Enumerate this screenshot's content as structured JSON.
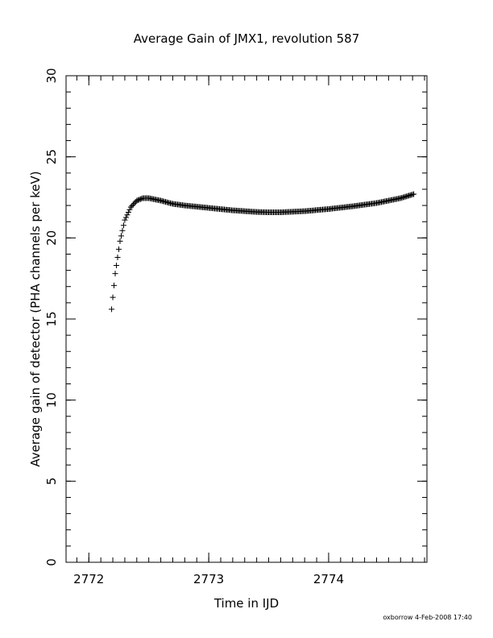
{
  "chart_data": {
    "type": "scatter",
    "title": "Average Gain of JMX1, revolution 587",
    "xlabel": "Time in IJD",
    "ylabel": "Average gain of detector (PHA channels per keV)",
    "xlim": [
      2771.81,
      2774.82
    ],
    "ylim": [
      0,
      30
    ],
    "x_major_ticks": [
      2772,
      2773,
      2774
    ],
    "x_tick_labels": [
      "2772",
      "2773",
      "2774"
    ],
    "x_minor_step": 0.1,
    "y_major_ticks": [
      0,
      5,
      10,
      15,
      20,
      25,
      30
    ],
    "y_tick_labels": [
      "0",
      "5",
      "10",
      "15",
      "20",
      "25",
      "30"
    ],
    "y_minor_step": 1,
    "grid": false,
    "legend": "none",
    "marker": "plus",
    "color": "#000000",
    "x_range": [
      2772.19,
      2774.71
    ],
    "point_step": 0.01,
    "curve_control_points": {
      "x": [
        2772.19,
        2772.22,
        2772.26,
        2772.3,
        2772.35,
        2772.4,
        2772.45,
        2772.5,
        2772.6,
        2772.7,
        2772.8,
        2773.0,
        2773.2,
        2773.4,
        2773.5,
        2773.6,
        2773.8,
        2774.0,
        2774.2,
        2774.4,
        2774.6,
        2774.71
      ],
      "y": [
        15.6,
        17.8,
        19.8,
        21.1,
        21.9,
        22.3,
        22.45,
        22.45,
        22.3,
        22.1,
        22.0,
        21.85,
        21.7,
        21.6,
        21.58,
        21.58,
        21.65,
        21.78,
        21.95,
        22.15,
        22.45,
        22.7
      ]
    }
  },
  "footer": {
    "text": "oxborrow  4-Feb-2008 17:40"
  }
}
